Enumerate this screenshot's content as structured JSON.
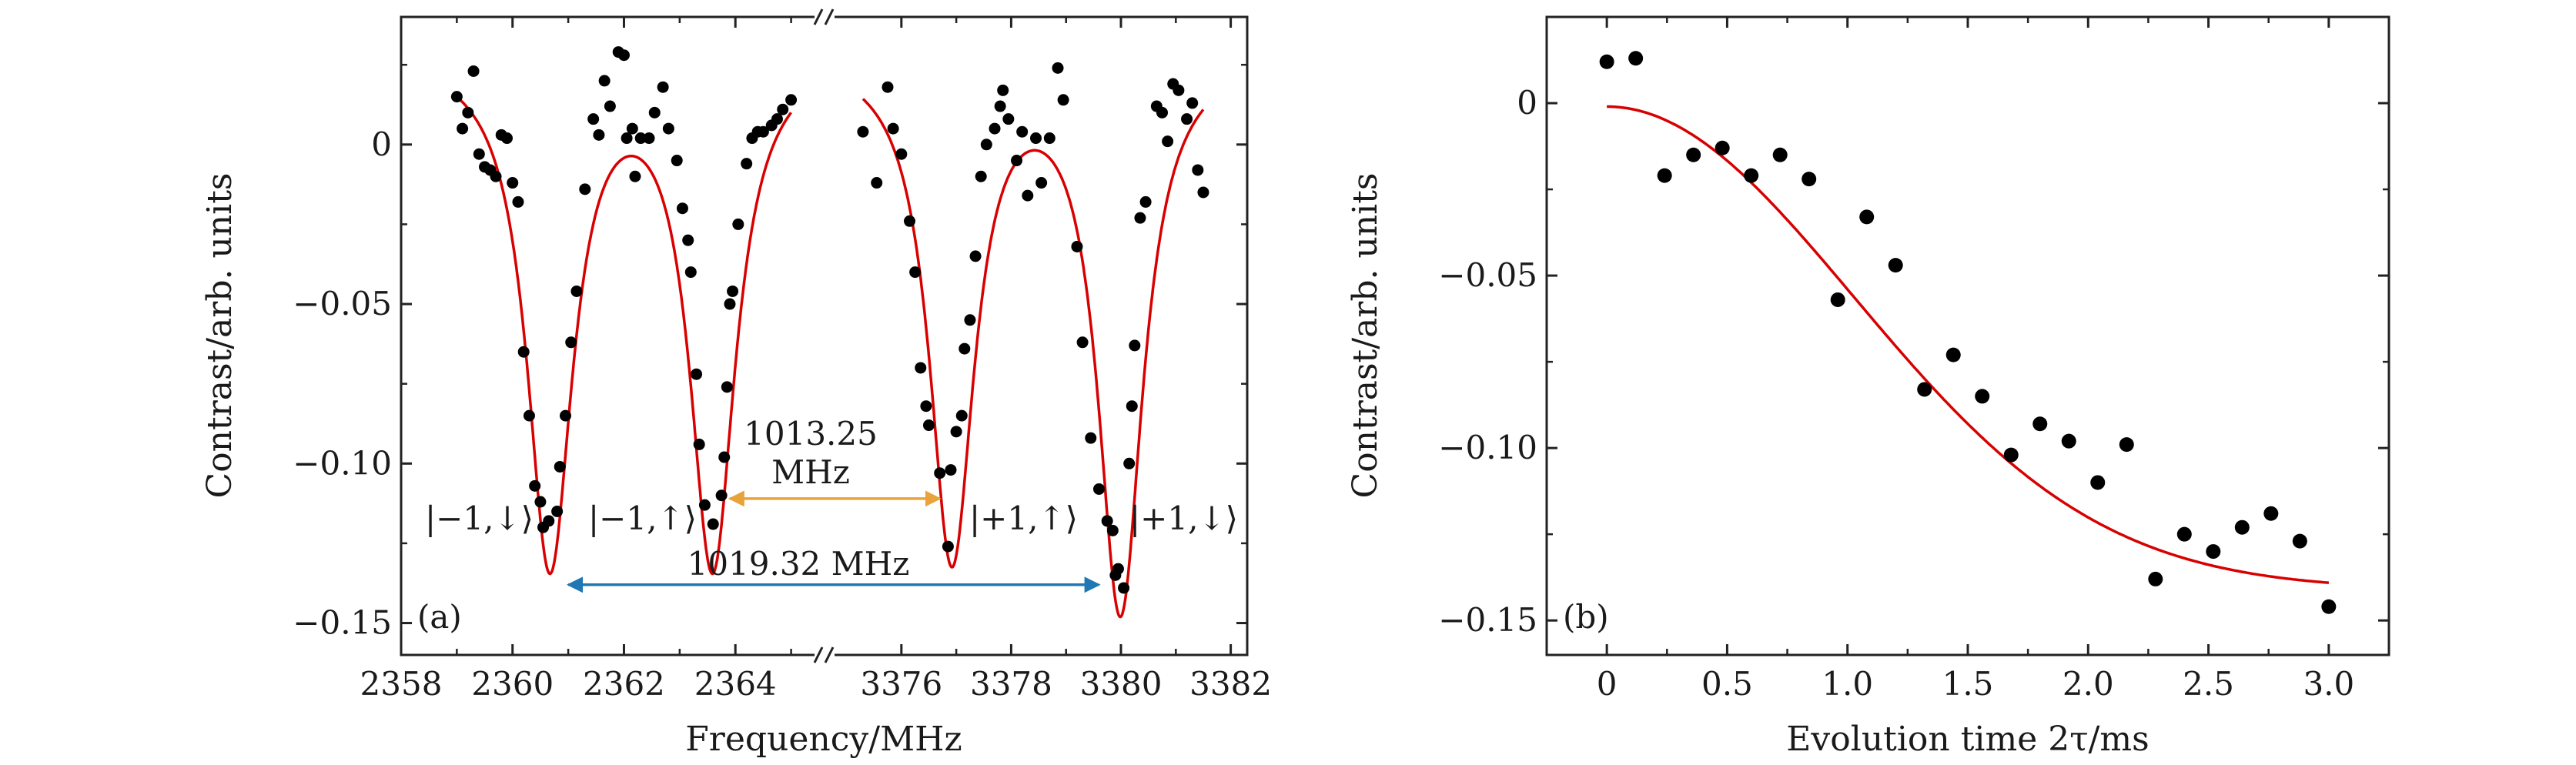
{
  "chart_data": [
    {
      "type": "scatter",
      "panel_label": "(a)",
      "xlabel": "Frequency/MHz",
      "ylabel": "Contrast/arb. units",
      "ylim": [
        -0.16,
        0.04
      ],
      "yticks": [
        {
          "v": 0,
          "label": "0"
        },
        {
          "v": -0.05,
          "label": "−0.05"
        },
        {
          "v": -0.1,
          "label": "−0.10"
        },
        {
          "v": -0.15,
          "label": "−0.15"
        }
      ],
      "segments": [
        {
          "xlim": [
            2358,
            2365.6
          ],
          "xticks": [
            {
              "v": 2358,
              "label": "2358"
            },
            {
              "v": 2360,
              "label": "2360"
            },
            {
              "v": 2362,
              "label": "2362"
            },
            {
              "v": 2364,
              "label": "2364"
            }
          ]
        },
        {
          "xlim": [
            3374.6,
            3382.3
          ],
          "xticks": [
            {
              "v": 3376,
              "label": "3376"
            },
            {
              "v": 3378,
              "label": "3378"
            },
            {
              "v": 3380,
              "label": "3380"
            },
            {
              "v": 3382,
              "label": "3382"
            }
          ]
        }
      ],
      "series": [
        {
          "name": "measured",
          "color": "#000000",
          "points": [
            [
              2359.0,
              0.015
            ],
            [
              2359.1,
              0.005
            ],
            [
              2359.2,
              0.01
            ],
            [
              2359.3,
              0.023
            ],
            [
              2359.4,
              -0.003
            ],
            [
              2359.5,
              -0.007
            ],
            [
              2359.6,
              -0.008
            ],
            [
              2359.7,
              -0.01
            ],
            [
              2359.8,
              0.003
            ],
            [
              2359.9,
              0.002
            ],
            [
              2360.0,
              -0.012
            ],
            [
              2360.1,
              -0.018
            ],
            [
              2360.2,
              -0.065
            ],
            [
              2360.3,
              -0.085
            ],
            [
              2360.4,
              -0.107
            ],
            [
              2360.5,
              -0.112
            ],
            [
              2360.55,
              -0.12
            ],
            [
              2360.65,
              -0.118
            ],
            [
              2360.8,
              -0.115
            ],
            [
              2360.85,
              -0.101
            ],
            [
              2360.95,
              -0.085
            ],
            [
              2361.05,
              -0.062
            ],
            [
              2361.15,
              -0.046
            ],
            [
              2361.3,
              -0.014
            ],
            [
              2361.45,
              0.008
            ],
            [
              2361.55,
              0.003
            ],
            [
              2361.65,
              0.02
            ],
            [
              2361.75,
              0.012
            ],
            [
              2361.9,
              0.029
            ],
            [
              2362.0,
              0.028
            ],
            [
              2362.05,
              0.002
            ],
            [
              2362.15,
              0.005
            ],
            [
              2362.2,
              -0.01
            ],
            [
              2362.3,
              0.002
            ],
            [
              2362.45,
              0.002
            ],
            [
              2362.55,
              0.01
            ],
            [
              2362.7,
              0.018
            ],
            [
              2362.8,
              0.005
            ],
            [
              2362.95,
              -0.005
            ],
            [
              2363.05,
              -0.02
            ],
            [
              2363.15,
              -0.03
            ],
            [
              2363.2,
              -0.04
            ],
            [
              2363.3,
              -0.072
            ],
            [
              2363.35,
              -0.094
            ],
            [
              2363.45,
              -0.113
            ],
            [
              2363.6,
              -0.119
            ],
            [
              2363.75,
              -0.11
            ],
            [
              2363.8,
              -0.098
            ],
            [
              2363.85,
              -0.076
            ],
            [
              2363.9,
              -0.05
            ],
            [
              2363.95,
              -0.046
            ],
            [
              2364.05,
              -0.025
            ],
            [
              2364.2,
              -0.006
            ],
            [
              2364.3,
              0.002
            ],
            [
              2364.4,
              0.004
            ],
            [
              2364.5,
              0.004
            ],
            [
              2364.65,
              0.006
            ],
            [
              2364.75,
              0.008
            ],
            [
              2364.85,
              0.011
            ],
            [
              2365.0,
              0.014
            ],
            [
              3375.3,
              0.004
            ],
            [
              3375.55,
              -0.012
            ],
            [
              3375.75,
              0.018
            ],
            [
              3375.85,
              0.005
            ],
            [
              3376.0,
              -0.003
            ],
            [
              3376.15,
              -0.024
            ],
            [
              3376.25,
              -0.04
            ],
            [
              3376.35,
              -0.07
            ],
            [
              3376.45,
              -0.082
            ],
            [
              3376.5,
              -0.088
            ],
            [
              3376.7,
              -0.103
            ],
            [
              3376.85,
              -0.126
            ],
            [
              3376.9,
              -0.102
            ],
            [
              3377.0,
              -0.09
            ],
            [
              3377.1,
              -0.085
            ],
            [
              3377.15,
              -0.064
            ],
            [
              3377.25,
              -0.055
            ],
            [
              3377.35,
              -0.035
            ],
            [
              3377.45,
              -0.01
            ],
            [
              3377.55,
              0.0
            ],
            [
              3377.7,
              0.005
            ],
            [
              3377.8,
              0.012
            ],
            [
              3377.85,
              0.017
            ],
            [
              3377.95,
              0.008
            ],
            [
              3378.1,
              -0.005
            ],
            [
              3378.2,
              0.004
            ],
            [
              3378.3,
              -0.016
            ],
            [
              3378.45,
              0.002
            ],
            [
              3378.55,
              -0.012
            ],
            [
              3378.7,
              0.002
            ],
            [
              3378.85,
              0.024
            ],
            [
              3378.95,
              0.014
            ],
            [
              3379.2,
              -0.032
            ],
            [
              3379.3,
              -0.062
            ],
            [
              3379.45,
              -0.092
            ],
            [
              3379.6,
              -0.108
            ],
            [
              3379.75,
              -0.118
            ],
            [
              3379.85,
              -0.121
            ],
            [
              3379.9,
              -0.135
            ],
            [
              3379.95,
              -0.133
            ],
            [
              3380.05,
              -0.139
            ],
            [
              3380.15,
              -0.1
            ],
            [
              3380.2,
              -0.082
            ],
            [
              3380.25,
              -0.063
            ],
            [
              3380.35,
              -0.023
            ],
            [
              3380.45,
              -0.018
            ],
            [
              3380.65,
              0.012
            ],
            [
              3380.75,
              0.01
            ],
            [
              3380.85,
              0.001
            ],
            [
              3380.95,
              0.019
            ],
            [
              3381.05,
              0.017
            ],
            [
              3381.2,
              0.008
            ],
            [
              3381.3,
              0.013
            ],
            [
              3381.4,
              -0.008
            ],
            [
              3381.5,
              -0.015
            ]
          ]
        },
        {
          "name": "fit",
          "color": "#d80000",
          "equation": "0.03 - 0.16*[L(2360.67) + L(2363.59)] - 0.158*L(3376.92) - 0.174*L(3379.99); L(c) = 0.5^2/((f-c)^2 + 0.5^2)"
        }
      ],
      "level_labels": [
        {
          "text": "|−1,↓⟩"
        },
        {
          "text": "|−1,↑⟩"
        },
        {
          "text": "|+1,↑⟩"
        },
        {
          "text": "|+1,↓⟩"
        }
      ],
      "arrows": [
        {
          "label_line1": "1013.25",
          "label_line2": "MHz",
          "color": "#e8a33a",
          "from": 2363.9,
          "to": 3376.7,
          "y": -0.111
        },
        {
          "label": "1019.32 MHz",
          "color": "#1f77b4",
          "from": 2361.0,
          "to": 3379.6,
          "y": -0.138
        }
      ]
    },
    {
      "type": "scatter",
      "panel_label": "(b)",
      "xlabel": "Evolution time 2τ/ms",
      "ylabel": "Contrast/arb. units",
      "xlim": [
        -0.25,
        3.25
      ],
      "ylim": [
        -0.16,
        0.025
      ],
      "xticks": [
        {
          "v": 0,
          "label": "0"
        },
        {
          "v": 0.5,
          "label": "0.5"
        },
        {
          "v": 1,
          "label": "1.0"
        },
        {
          "v": 1.5,
          "label": "1.5"
        },
        {
          "v": 2,
          "label": "2.0"
        },
        {
          "v": 2.5,
          "label": "2.5"
        },
        {
          "v": 3,
          "label": "3.0"
        }
      ],
      "yticks": [
        {
          "v": 0,
          "label": "0"
        },
        {
          "v": -0.05,
          "label": "−0.05"
        },
        {
          "v": -0.1,
          "label": "−0.10"
        },
        {
          "v": -0.15,
          "label": "−0.15"
        }
      ],
      "series": [
        {
          "name": "measured",
          "color": "#000000",
          "points": [
            [
              0.0,
              0.012
            ],
            [
              0.12,
              0.013
            ],
            [
              0.24,
              -0.021
            ],
            [
              0.36,
              -0.015
            ],
            [
              0.48,
              -0.013
            ],
            [
              0.6,
              -0.021
            ],
            [
              0.72,
              -0.015
            ],
            [
              0.84,
              -0.022
            ],
            [
              0.96,
              -0.057
            ],
            [
              1.08,
              -0.033
            ],
            [
              1.2,
              -0.047
            ],
            [
              1.32,
              -0.083
            ],
            [
              1.44,
              -0.073
            ],
            [
              1.56,
              -0.085
            ],
            [
              1.68,
              -0.102
            ],
            [
              1.8,
              -0.093
            ],
            [
              1.92,
              -0.098
            ],
            [
              2.04,
              -0.11
            ],
            [
              2.16,
              -0.099
            ],
            [
              2.28,
              -0.138
            ],
            [
              2.4,
              -0.125
            ],
            [
              2.52,
              -0.13
            ],
            [
              2.64,
              -0.123
            ],
            [
              2.76,
              -0.119
            ],
            [
              2.88,
              -0.127
            ],
            [
              3.0,
              -0.146
            ]
          ]
        },
        {
          "name": "fit",
          "color": "#d80000",
          "equation": "-0.001 - 0.14*(1 - exp(-(t/1.45)^2))"
        }
      ]
    }
  ]
}
